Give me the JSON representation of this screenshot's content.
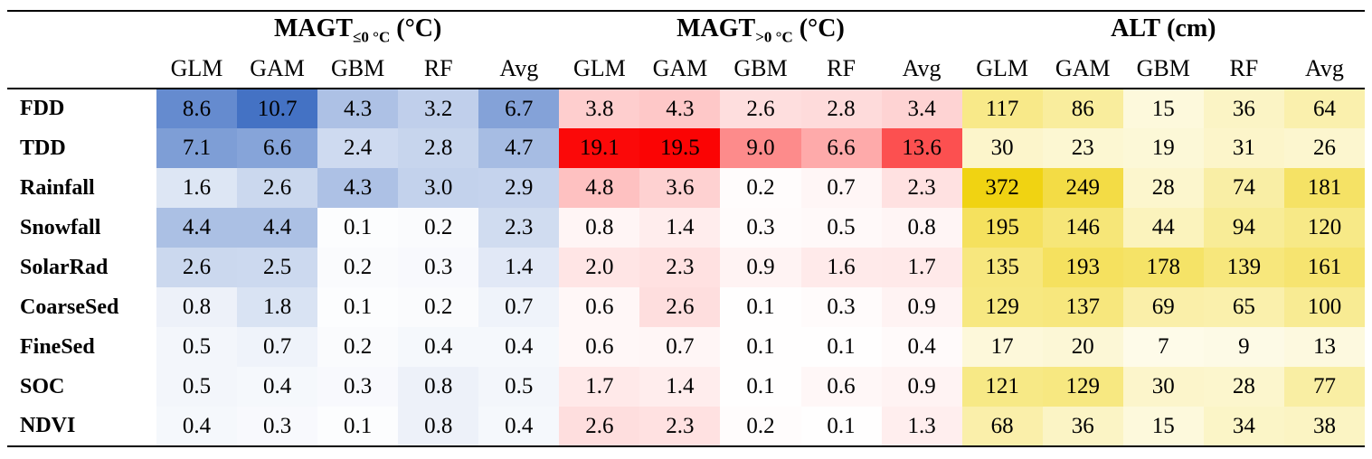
{
  "groups": [
    {
      "key": "magt_le0",
      "main": "MAGT",
      "sub": "≤0 °C",
      "unit": " (°C)",
      "max_color": "#4472c4"
    },
    {
      "key": "magt_gt0",
      "main": "MAGT",
      "sub": ">0 °C",
      "unit": " (°C)",
      "max_color": "#fb0404"
    },
    {
      "key": "alt",
      "main": "ALT",
      "sub": "",
      "unit": " (cm)",
      "max_color": "#f0d312"
    }
  ],
  "models": [
    "GLM",
    "GAM",
    "GBM",
    "RF",
    "Avg"
  ],
  "rows": [
    {
      "label": "FDD",
      "magt_le0": [
        "8.6",
        "10.7",
        "4.3",
        "3.2",
        "6.7"
      ],
      "magt_gt0": [
        "3.8",
        "4.3",
        "2.6",
        "2.8",
        "3.4"
      ],
      "alt": [
        "117",
        "86",
        "15",
        "36",
        "64"
      ]
    },
    {
      "label": "TDD",
      "magt_le0": [
        "7.1",
        "6.6",
        "2.4",
        "2.8",
        "4.7"
      ],
      "magt_gt0": [
        "19.1",
        "19.5",
        "9.0",
        "6.6",
        "13.6"
      ],
      "alt": [
        "30",
        "23",
        "19",
        "31",
        "26"
      ]
    },
    {
      "label": "Rainfall",
      "magt_le0": [
        "1.6",
        "2.6",
        "4.3",
        "3.0",
        "2.9"
      ],
      "magt_gt0": [
        "4.8",
        "3.6",
        "0.2",
        "0.7",
        "2.3"
      ],
      "alt": [
        "372",
        "249",
        "28",
        "74",
        "181"
      ]
    },
    {
      "label": "Snowfall",
      "magt_le0": [
        "4.4",
        "4.4",
        "0.1",
        "0.2",
        "2.3"
      ],
      "magt_gt0": [
        "0.8",
        "1.4",
        "0.3",
        "0.5",
        "0.8"
      ],
      "alt": [
        "195",
        "146",
        "44",
        "94",
        "120"
      ]
    },
    {
      "label": "SolarRad",
      "magt_le0": [
        "2.6",
        "2.5",
        "0.2",
        "0.3",
        "1.4"
      ],
      "magt_gt0": [
        "2.0",
        "2.3",
        "0.9",
        "1.6",
        "1.7"
      ],
      "alt": [
        "135",
        "193",
        "178",
        "139",
        "161"
      ]
    },
    {
      "label": "CoarseSed",
      "magt_le0": [
        "0.8",
        "1.8",
        "0.1",
        "0.2",
        "0.7"
      ],
      "magt_gt0": [
        "0.6",
        "2.6",
        "0.1",
        "0.3",
        "0.9"
      ],
      "alt": [
        "129",
        "137",
        "69",
        "65",
        "100"
      ]
    },
    {
      "label": "FineSed",
      "magt_le0": [
        "0.5",
        "0.7",
        "0.2",
        "0.4",
        "0.4"
      ],
      "magt_gt0": [
        "0.6",
        "0.7",
        "0.1",
        "0.1",
        "0.4"
      ],
      "alt": [
        "17",
        "20",
        "7",
        "9",
        "13"
      ]
    },
    {
      "label": "SOC",
      "magt_le0": [
        "0.5",
        "0.4",
        "0.3",
        "0.8",
        "0.5"
      ],
      "magt_gt0": [
        "1.7",
        "1.4",
        "0.1",
        "0.6",
        "0.9"
      ],
      "alt": [
        "121",
        "129",
        "30",
        "28",
        "77"
      ]
    },
    {
      "label": "NDVI",
      "magt_le0": [
        "0.4",
        "0.3",
        "0.1",
        "0.8",
        "0.4"
      ],
      "magt_gt0": [
        "2.6",
        "2.3",
        "0.2",
        "0.1",
        "1.3"
      ],
      "alt": [
        "68",
        "36",
        "15",
        "34",
        "38"
      ]
    }
  ]
}
